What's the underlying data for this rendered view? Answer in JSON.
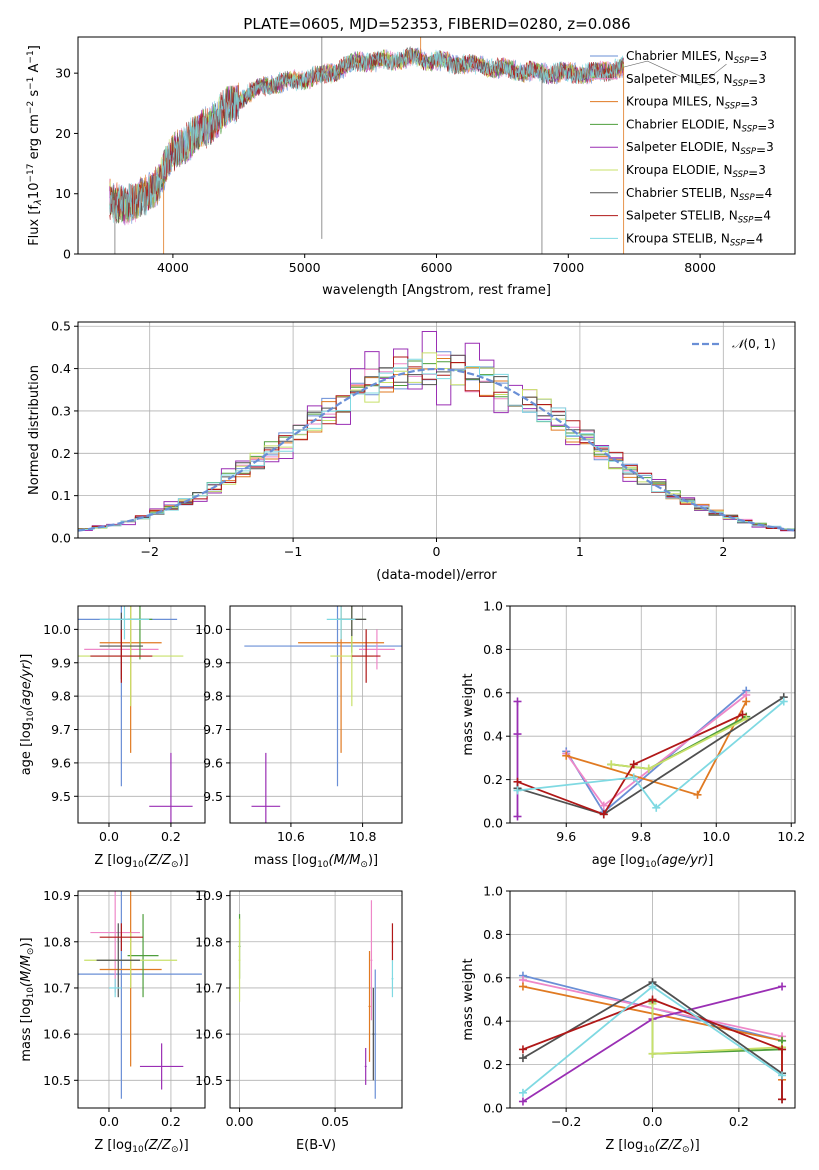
{
  "figure": {
    "title": "PLATE=0605, MJD=52353, FIBERID=0280, z=0.086"
  },
  "models": [
    {
      "imf": "Chabrier",
      "lib": "MILES",
      "nssp": 3,
      "label": "Chabrier MILES, N",
      "color": "#6a8fd6"
    },
    {
      "imf": "Salpeter",
      "lib": "MILES",
      "nssp": 3,
      "label": "Salpeter MILES, N",
      "color": "#ee88c8"
    },
    {
      "imf": "Kroupa",
      "lib": "MILES",
      "nssp": 3,
      "label": "Kroupa MILES, N",
      "color": "#e07a22"
    },
    {
      "imf": "Chabrier",
      "lib": "ELODIE",
      "nssp": 3,
      "label": "Chabrier ELODIE, N",
      "color": "#4e9e3c"
    },
    {
      "imf": "Salpeter",
      "lib": "ELODIE",
      "nssp": 3,
      "label": "Salpeter ELODIE, N",
      "color": "#9a2fb4"
    },
    {
      "imf": "Kroupa",
      "lib": "ELODIE",
      "nssp": 3,
      "label": "Kroupa ELODIE, N",
      "color": "#c8e06a"
    },
    {
      "imf": "Chabrier",
      "lib": "STELIB",
      "nssp": 4,
      "label": "Chabrier STELIB, N",
      "color": "#505050"
    },
    {
      "imf": "Salpeter",
      "lib": "STELIB",
      "nssp": 4,
      "label": "Salpeter STELIB, N",
      "color": "#b01818"
    },
    {
      "imf": "Kroupa",
      "lib": "STELIB",
      "nssp": 4,
      "label": "Kroupa STELIB, N",
      "color": "#7fd9e2"
    }
  ],
  "legend_sub": "SSP",
  "chart_data": [
    {
      "id": "spectrum",
      "type": "line",
      "xlabel": "wavelength [Angstrom, rest frame]",
      "ylabel": "Flux [f",
      "xlim": [
        3280,
        8720
      ],
      "ylim": [
        0,
        36
      ],
      "xticks": [
        4000,
        5000,
        6000,
        7000,
        8000
      ],
      "yticks": [
        0,
        10,
        20,
        30
      ],
      "data_range": [
        3520,
        7420
      ],
      "continuum": {
        "x": [
          3520,
          3700,
          3900,
          4000,
          4200,
          4400,
          4600,
          4800,
          5000,
          5200,
          5400,
          5600,
          5800,
          6000,
          6200,
          6400,
          6600,
          6800,
          7000,
          7200,
          7420
        ],
        "y": [
          9,
          8,
          12,
          17,
          20,
          24,
          27,
          28.5,
          29,
          30,
          32,
          32,
          32.5,
          32,
          31.5,
          31,
          30.5,
          30,
          30,
          30,
          31
        ]
      },
      "extension": {
        "x": [
          7420,
          7600,
          7800,
          8000,
          8200
        ],
        "y": [
          31,
          32,
          30,
          28,
          31.5
        ]
      },
      "lines": [
        {
          "x": 5130,
          "to": 2.5,
          "from": 36
        },
        {
          "x": 3930,
          "to": 0,
          "from": 12
        },
        {
          "x": 6800,
          "to": 0,
          "from": 30
        },
        {
          "x": 7420,
          "to": 0,
          "from": 31
        },
        {
          "x": 3560,
          "to": 0,
          "from": 10
        },
        {
          "x": 5880,
          "to": 37,
          "from": 32
        }
      ]
    },
    {
      "id": "residuals",
      "type": "histogram",
      "xlabel": "(data-model)/error",
      "ylabel": "Normed distribution",
      "xlim": [
        -2.5,
        2.5
      ],
      "ylim": [
        0,
        0.51
      ],
      "xticks": [
        -2,
        -1,
        0,
        1,
        2
      ],
      "yticks": [
        0,
        0.1,
        0.2,
        0.3,
        0.4,
        0.5
      ],
      "bin_width": 0.1,
      "reference": {
        "name": "(0, 1)",
        "mean": 0,
        "sigma": 1,
        "color": "#6a8fd6"
      },
      "spiky_series_index": 4
    },
    {
      "id": "age_vs_z",
      "type": "errorbar",
      "xlabel": "Z [log",
      "ylabel": "age  [log",
      "xlim": [
        -0.1,
        0.31
      ],
      "ylim": [
        9.42,
        10.07
      ],
      "xticks": [
        0.0,
        0.2
      ],
      "yticks": [
        9.5,
        9.6,
        9.7,
        9.8,
        9.9,
        10.0
      ],
      "points": [
        {
          "x": 0.04,
          "y": 10.03,
          "xerr": 0.18,
          "yerr": 0.5
        },
        {
          "x": 0.04,
          "y": 9.94,
          "xerr": 0.12,
          "yerr": 0.08
        },
        {
          "x": 0.07,
          "y": 9.96,
          "xerr": 0.1,
          "yerr": 0.33
        },
        {
          "x": 0.1,
          "y": 10.03,
          "xerr": 0.04,
          "yerr": 0.12
        },
        {
          "x": 0.2,
          "y": 9.47,
          "xerr": 0.07,
          "yerr": 0.16
        },
        {
          "x": 0.07,
          "y": 9.92,
          "xerr": 0.17,
          "yerr": 0.15
        },
        {
          "x": 0.04,
          "y": 9.95,
          "xerr": 0.07,
          "yerr": 0.1
        },
        {
          "x": 0.04,
          "y": 9.92,
          "xerr": 0.1,
          "yerr": 0.08
        },
        {
          "x": 0.05,
          "y": 10.03,
          "xerr": 0.08,
          "yerr": 0.06
        }
      ]
    },
    {
      "id": "age_vs_mass",
      "type": "errorbar",
      "xlabel": "mass [log",
      "ylabel": "",
      "xlim": [
        10.43,
        10.91
      ],
      "ylim": [
        9.42,
        10.07
      ],
      "xticks": [
        10.6,
        10.8
      ],
      "yticks": [
        9.5,
        9.6,
        9.7,
        9.8,
        9.9,
        10.0
      ],
      "points": [
        {
          "x": 10.73,
          "y": 9.95,
          "xerr": 0.26,
          "yerr": 0.42
        },
        {
          "x": 10.84,
          "y": 9.94,
          "xerr": 0.05,
          "yerr": 0.06
        },
        {
          "x": 10.74,
          "y": 9.96,
          "xerr": 0.12,
          "yerr": 0.33
        },
        {
          "x": 10.77,
          "y": 10.03,
          "xerr": 0.04,
          "yerr": 0.1
        },
        {
          "x": 10.53,
          "y": 9.47,
          "xerr": 0.04,
          "yerr": 0.16
        },
        {
          "x": 10.77,
          "y": 9.92,
          "xerr": 0.06,
          "yerr": 0.15
        },
        {
          "x": 10.77,
          "y": 10.03,
          "xerr": 0.04,
          "yerr": 0.05
        },
        {
          "x": 10.81,
          "y": 9.92,
          "xerr": 0.04,
          "yerr": 0.08
        },
        {
          "x": 10.74,
          "y": 10.03,
          "xerr": 0.04,
          "yerr": 0.06
        }
      ]
    },
    {
      "id": "weight_vs_age",
      "type": "line",
      "xlabel": "age  [log",
      "ylabel": "mass weight",
      "xlim": [
        9.45,
        10.21
      ],
      "ylim": [
        0,
        1.0
      ],
      "xticks": [
        9.6,
        9.8,
        10.0,
        10.2
      ],
      "yticks": [
        0.0,
        0.2,
        0.4,
        0.6,
        0.8,
        1.0
      ],
      "series": [
        {
          "x": [
            9.6,
            9.7,
            10.08
          ],
          "y": [
            0.33,
            0.05,
            0.61
          ]
        },
        {
          "x": [
            9.6,
            9.7,
            10.08
          ],
          "y": [
            0.32,
            0.08,
            0.59
          ]
        },
        {
          "x": [
            9.6,
            9.95,
            10.08
          ],
          "y": [
            0.31,
            0.13,
            0.56
          ]
        },
        {
          "x": [
            9.72,
            9.82,
            10.08
          ],
          "y": [
            0.27,
            0.25,
            0.49
          ]
        },
        {
          "x": [
            9.47,
            9.47,
            9.47
          ],
          "y": [
            0.03,
            0.41,
            0.56
          ]
        },
        {
          "x": [
            9.72,
            9.82,
            10.08
          ],
          "y": [
            0.27,
            0.25,
            0.48
          ]
        },
        {
          "x": [
            9.47,
            9.7,
            10.18
          ],
          "y": [
            0.16,
            0.04,
            0.58
          ]
        },
        {
          "x": [
            9.47,
            9.7,
            9.78,
            10.07
          ],
          "y": [
            0.19,
            0.04,
            0.27,
            0.5
          ]
        },
        {
          "x": [
            9.47,
            9.78,
            9.84,
            10.18
          ],
          "y": [
            0.15,
            0.21,
            0.07,
            0.56
          ]
        }
      ]
    },
    {
      "id": "mass_vs_z",
      "type": "errorbar",
      "xlabel": "Z [log",
      "ylabel": "mass [log",
      "xlim": [
        -0.1,
        0.31
      ],
      "ylim": [
        10.44,
        10.91
      ],
      "xticks": [
        0.0,
        0.2
      ],
      "yticks": [
        10.5,
        10.6,
        10.7,
        10.8,
        10.9
      ],
      "points": [
        {
          "x": 0.04,
          "y": 10.73,
          "xerr": 0.26,
          "yerr": 0.27
        },
        {
          "x": 0.02,
          "y": 10.82,
          "xerr": 0.08,
          "yerr": 0.13
        },
        {
          "x": 0.07,
          "y": 10.74,
          "xerr": 0.1,
          "yerr": 0.21
        },
        {
          "x": 0.11,
          "y": 10.77,
          "xerr": 0.05,
          "yerr": 0.09
        },
        {
          "x": 0.17,
          "y": 10.53,
          "xerr": 0.07,
          "yerr": 0.05
        },
        {
          "x": 0.07,
          "y": 10.76,
          "xerr": 0.15,
          "yerr": 0.06
        },
        {
          "x": 0.03,
          "y": 10.76,
          "xerr": 0.07,
          "yerr": 0.08
        },
        {
          "x": 0.04,
          "y": 10.81,
          "xerr": 0.07,
          "yerr": 0.03
        },
        {
          "x": 0.02,
          "y": 10.7,
          "xerr": 0.02,
          "yerr": 0.02
        }
      ]
    },
    {
      "id": "mass_vs_ebv",
      "type": "errorbar",
      "xlabel": "E(B-V)",
      "ylabel": "",
      "xlim": [
        -0.005,
        0.085
      ],
      "ylim": [
        10.44,
        10.91
      ],
      "xticks": [
        0.0,
        0.05
      ],
      "yticks": [
        10.5,
        10.6,
        10.7,
        10.8,
        10.9
      ],
      "points": [
        {
          "x": 0.071,
          "y": 10.6,
          "xerr": 0.0005,
          "yerr": 0.14
        },
        {
          "x": 0.069,
          "y": 10.76,
          "xerr": 0.0005,
          "yerr": 0.13
        },
        {
          "x": 0.068,
          "y": 10.66,
          "xerr": 0.0005,
          "yerr": 0.12
        },
        {
          "x": 0.0,
          "y": 10.79,
          "xerr": 0.0005,
          "yerr": 0.07
        },
        {
          "x": 0.066,
          "y": 10.53,
          "xerr": 0.0005,
          "yerr": 0.04
        },
        {
          "x": 0.0,
          "y": 10.76,
          "xerr": 0.0005,
          "yerr": 0.09
        },
        {
          "x": 0.07,
          "y": 10.6,
          "xerr": 0.0005,
          "yerr": 0.1
        },
        {
          "x": 0.08,
          "y": 10.8,
          "xerr": 0.0005,
          "yerr": 0.04
        },
        {
          "x": 0.08,
          "y": 10.72,
          "xerr": 0.0005,
          "yerr": 0.04
        }
      ]
    },
    {
      "id": "weight_vs_z",
      "type": "line",
      "xlabel": "Z [log",
      "ylabel": "mass weight",
      "xlim": [
        -0.33,
        0.33
      ],
      "ylim": [
        0,
        1.0
      ],
      "xticks": [
        -0.2,
        0.0,
        0.2
      ],
      "yticks": [
        0.0,
        0.2,
        0.4,
        0.6,
        0.8,
        1.0
      ],
      "series": [
        {
          "x": [
            -0.3,
            0.3
          ],
          "y": [
            0.61,
            0.31
          ]
        },
        {
          "x": [
            -0.3,
            0.3
          ],
          "y": [
            0.59,
            0.33
          ]
        },
        {
          "x": [
            -0.3,
            0.3,
            0.3
          ],
          "y": [
            0.56,
            0.31,
            0.13
          ]
        },
        {
          "x": [
            0.0,
            0.0,
            0.3,
            0.3
          ],
          "y": [
            0.49,
            0.25,
            0.27,
            0.31
          ]
        },
        {
          "x": [
            -0.3,
            0.0,
            0.3
          ],
          "y": [
            0.03,
            0.41,
            0.56
          ]
        },
        {
          "x": [
            0.0,
            0.0,
            0.3
          ],
          "y": [
            0.48,
            0.25,
            0.28
          ]
        },
        {
          "x": [
            -0.3,
            0.0,
            0.3,
            0.3
          ],
          "y": [
            0.23,
            0.58,
            0.16,
            0.04
          ]
        },
        {
          "x": [
            -0.3,
            0.0,
            0.3,
            0.3
          ],
          "y": [
            0.27,
            0.5,
            0.27,
            0.04
          ]
        },
        {
          "x": [
            -0.3,
            0.0,
            0.3
          ],
          "y": [
            0.07,
            0.56,
            0.15
          ]
        }
      ]
    }
  ]
}
